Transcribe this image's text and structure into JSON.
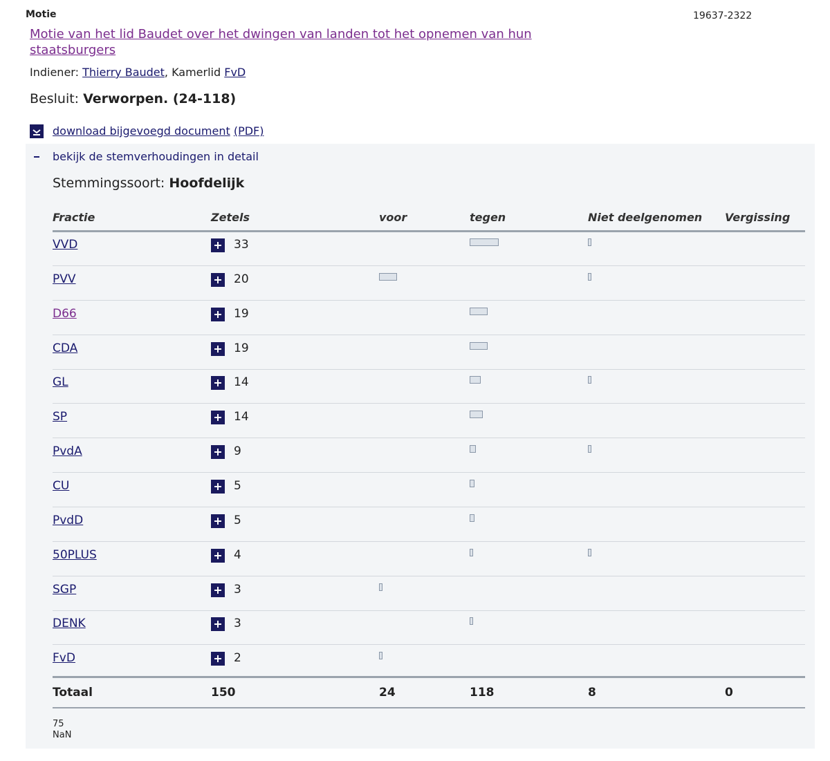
{
  "header": {
    "type_label": "Motie",
    "number": "19637-2322",
    "title": "Motie van het lid Baudet over het dwingen van landen tot het opnemen van hun staatsburgers",
    "indiener_label": "Indiener:",
    "indiener_name": "Thierry Baudet",
    "indiener_role": ", Kamerlid",
    "indiener_party": "FvD",
    "besluit_label": "Besluit:",
    "besluit_value": "Verworpen. (24-118)"
  },
  "links": {
    "download": "download bijgevoegd document",
    "pdf": "(PDF)",
    "detail": "bekijk de stemverhoudingen in detail"
  },
  "stemmingssoort": {
    "label": "Stemmingssoort:",
    "value": "Hoofdelijk"
  },
  "table": {
    "columns": [
      "Fractie",
      "Zetels",
      "voor",
      "tegen",
      "Niet deelgenomen",
      "Vergissing"
    ],
    "rows": [
      {
        "fractie": "VVD",
        "zetels": 33,
        "voor": null,
        "tegen": 31,
        "niet_deelgenomen": 2
      },
      {
        "fractie": "PVV",
        "zetels": 20,
        "voor": 19,
        "tegen": null,
        "niet_deelgenomen": 1
      },
      {
        "fractie": "D66",
        "zetels": 19,
        "voor": null,
        "tegen": 19,
        "niet_deelgenomen": null
      },
      {
        "fractie": "CDA",
        "zetels": 19,
        "voor": null,
        "tegen": 19,
        "niet_deelgenomen": null
      },
      {
        "fractie": "GL",
        "zetels": 14,
        "voor": null,
        "tegen": 12,
        "niet_deelgenomen": 2
      },
      {
        "fractie": "SP",
        "zetels": 14,
        "voor": null,
        "tegen": 14,
        "niet_deelgenomen": null
      },
      {
        "fractie": "PvdA",
        "zetels": 9,
        "voor": null,
        "tegen": 7,
        "niet_deelgenomen": 2
      },
      {
        "fractie": "CU",
        "zetels": 5,
        "voor": null,
        "tegen": 5,
        "niet_deelgenomen": null
      },
      {
        "fractie": "PvdD",
        "zetels": 5,
        "voor": null,
        "tegen": 5,
        "niet_deelgenomen": null
      },
      {
        "fractie": "50PLUS",
        "zetels": 4,
        "voor": null,
        "tegen": 3,
        "niet_deelgenomen": 1
      },
      {
        "fractie": "SGP",
        "zetels": 3,
        "voor": 3,
        "tegen": null,
        "niet_deelgenomen": null
      },
      {
        "fractie": "DENK",
        "zetels": 3,
        "voor": null,
        "tegen": 3,
        "niet_deelgenomen": null
      },
      {
        "fractie": "FvD",
        "zetels": 2,
        "voor": 2,
        "tegen": null,
        "niet_deelgenomen": null
      }
    ],
    "total": {
      "label": "Totaal",
      "zetels": 150,
      "voor": 24,
      "tegen": 118,
      "niet_deelgenomen": 8,
      "vergissing": 0
    }
  },
  "footer": {
    "line1": "75",
    "line2": "NaN"
  }
}
